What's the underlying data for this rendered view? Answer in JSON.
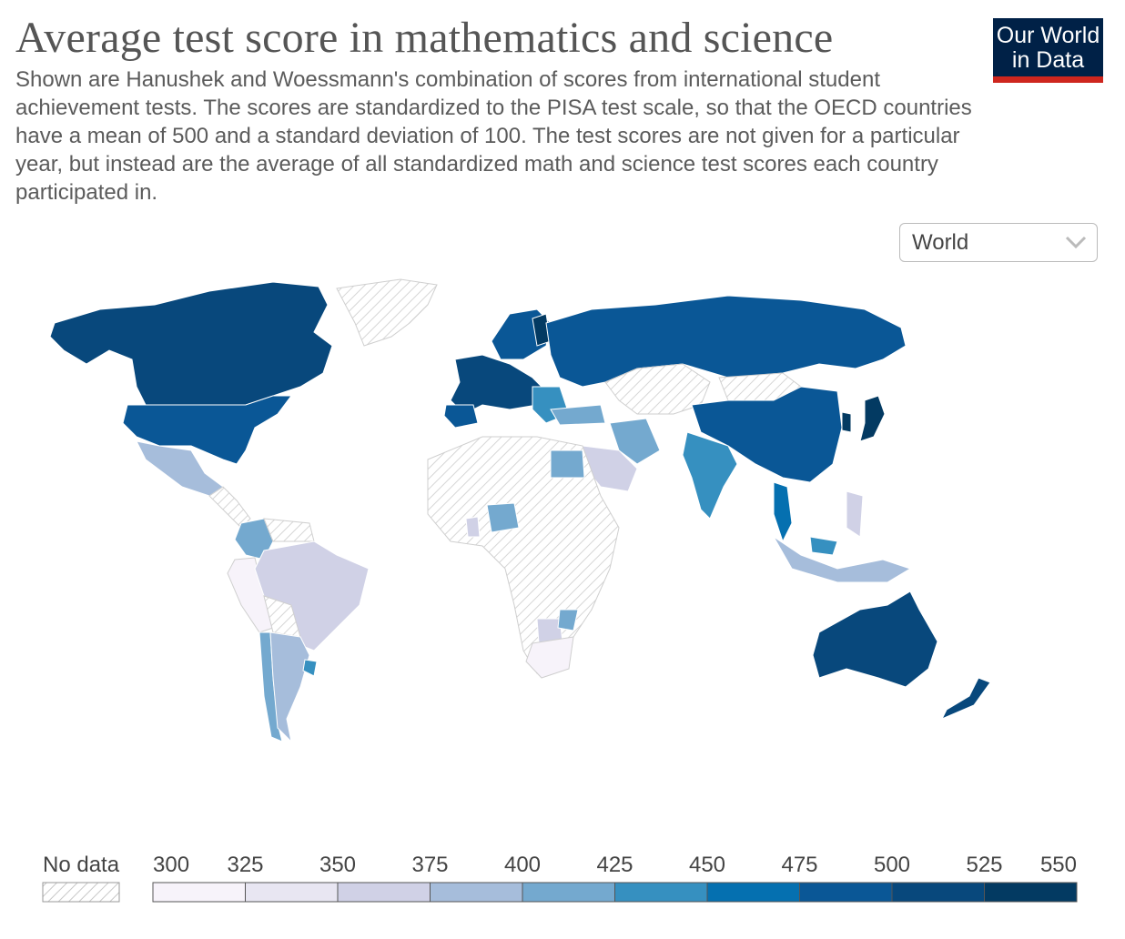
{
  "header": {
    "title": "Average test score in mathematics and science",
    "subtitle": "Shown are Hanushek and Woessmann's combination of scores from international student achievement tests. The scores are standardized to the PISA test scale, so that the OECD countries have a mean of 500 and a standard deviation of 100. The test scores are not given for a particular year, but instead are the average of all standardized math and science test scores each country participated in."
  },
  "logo": {
    "line1": "Our World",
    "line2": "in Data"
  },
  "region_select": {
    "value": "World",
    "icon": "chevron-down-icon"
  },
  "legend": {
    "no_data_label": "No data",
    "ticks": [
      "300",
      "325",
      "350",
      "375",
      "400",
      "425",
      "450",
      "475",
      "500",
      "525",
      "550"
    ],
    "colors": [
      "#f7f3fa",
      "#e8e6f2",
      "#d0d1e6",
      "#a6bddb",
      "#74a9cf",
      "#3690c0",
      "#0570b0",
      "#0a5796",
      "#08487c",
      "#033a62"
    ]
  },
  "map": {
    "colors": {
      "no_data": "#ffffff",
      "border": "#cfcfcf",
      "hatch": "#d6d6d6"
    }
  }
}
